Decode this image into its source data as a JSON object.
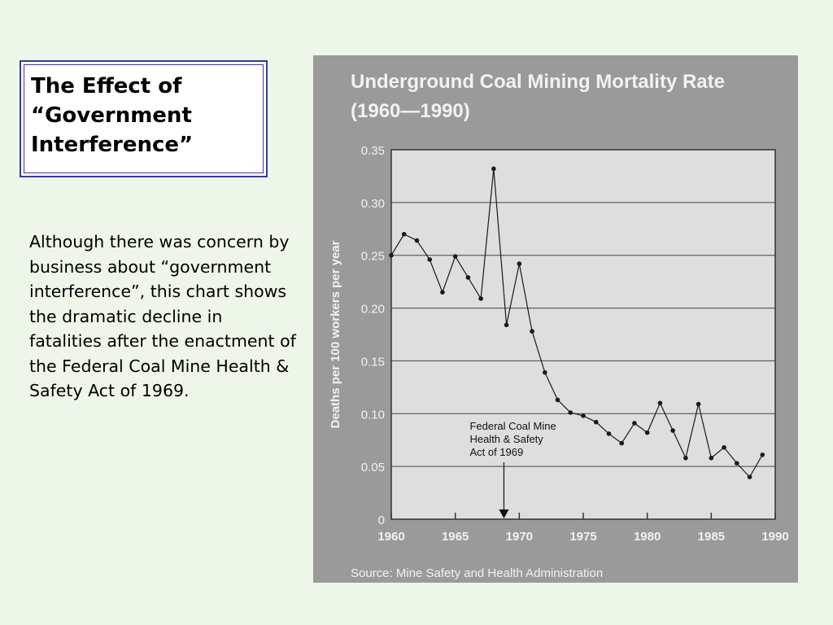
{
  "slide": {
    "title": "The Effect of\n“Government\nInterference”",
    "body": "Although there was concern by business about “government interference”, this chart shows the dramatic decline in fatalities after the enactment of the Federal Coal Mine Health & Safety Act of 1969."
  },
  "chart_data": {
    "type": "line",
    "title": "Underground Coal Mining Mortality Rate",
    "subtitle": "(1960—1990)",
    "xlabel": "",
    "ylabel": "Deaths per 100 workers per year",
    "source": "Source: Mine Safety and Health Administration",
    "xlim": [
      1960,
      1990
    ],
    "ylim": [
      0,
      0.35
    ],
    "grid": true,
    "x_ticks": [
      "1960",
      "1965",
      "1970",
      "1975",
      "1980",
      "1985",
      "1990"
    ],
    "y_ticks": [
      "0",
      "0.05",
      "0.10",
      "0.15",
      "0.20",
      "0.25",
      "0.30",
      "0.35"
    ],
    "series": [
      {
        "x": [
          1960,
          1961,
          1962,
          1963,
          1964,
          1965,
          1966,
          1967,
          1968,
          1969,
          1970,
          1971,
          1972,
          1973,
          1974,
          1975,
          1976,
          1977,
          1978,
          1979,
          1980,
          1981,
          1982,
          1983,
          1984,
          1985,
          1986,
          1987,
          1988,
          1989
        ],
        "values": [
          0.25,
          0.27,
          0.264,
          0.246,
          0.215,
          0.249,
          0.229,
          0.209,
          0.332,
          0.184,
          0.242,
          0.178,
          0.139,
          0.113,
          0.101,
          0.098,
          0.092,
          0.081,
          0.072,
          0.091,
          0.082,
          0.11,
          0.084,
          0.058,
          0.109,
          0.058,
          0.068,
          0.053,
          0.04,
          0.061
        ]
      }
    ],
    "annotation": {
      "lines": [
        "Federal Coal Mine",
        "Health & Safety",
        "Act of 1969"
      ],
      "x": 1968.8,
      "y": 0.0
    },
    "colors": {
      "panel": "#9a9a9a",
      "plot_area": "#dedede",
      "line": "#1a1a1a",
      "light_text": "#ffffff"
    }
  }
}
